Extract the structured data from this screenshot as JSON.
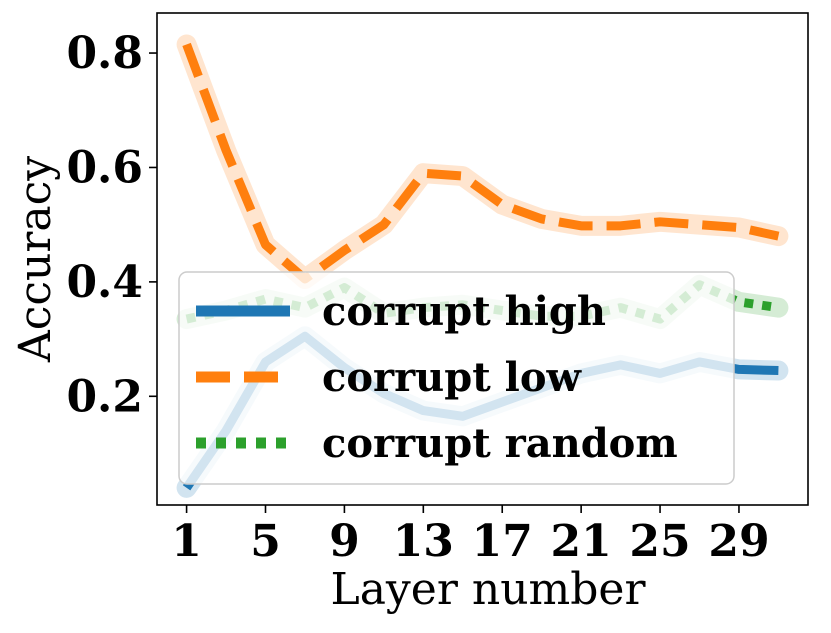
{
  "chart_data": {
    "type": "line",
    "xlabel": "Layer number",
    "ylabel": "Accuracy",
    "x": [
      1,
      3,
      5,
      7,
      9,
      11,
      13,
      15,
      17,
      19,
      21,
      23,
      25,
      27,
      29,
      31
    ],
    "xticks": [
      1,
      5,
      9,
      13,
      17,
      21,
      25,
      29
    ],
    "yticks": [
      0.2,
      0.4,
      0.6,
      0.8
    ],
    "ytick_labels": [
      "0.2",
      "0.4",
      "0.6",
      "0.8"
    ],
    "xlim": [
      -0.5,
      32.5
    ],
    "ylim": [
      0.01,
      0.87
    ],
    "grid": false,
    "legend_position": "lower-left",
    "series": [
      {
        "name": "corrupt high",
        "color": "#1f77b4",
        "style": "solid",
        "values": [
          0.04,
          0.14,
          0.26,
          0.305,
          0.25,
          0.205,
          0.175,
          0.165,
          0.19,
          0.215,
          0.24,
          0.255,
          0.24,
          0.26,
          0.247,
          0.245
        ]
      },
      {
        "name": "corrupt low",
        "color": "#ff7f0e",
        "style": "dashed",
        "values": [
          0.815,
          0.63,
          0.465,
          0.405,
          0.455,
          0.5,
          0.59,
          0.585,
          0.535,
          0.51,
          0.498,
          0.498,
          0.505,
          0.5,
          0.495,
          0.48
        ]
      },
      {
        "name": "corrupt random",
        "color": "#2ca02c",
        "style": "dotted",
        "values": [
          0.335,
          0.35,
          0.37,
          0.355,
          0.39,
          0.345,
          0.355,
          0.36,
          0.35,
          0.34,
          0.34,
          0.355,
          0.335,
          0.395,
          0.365,
          0.355
        ]
      }
    ]
  }
}
